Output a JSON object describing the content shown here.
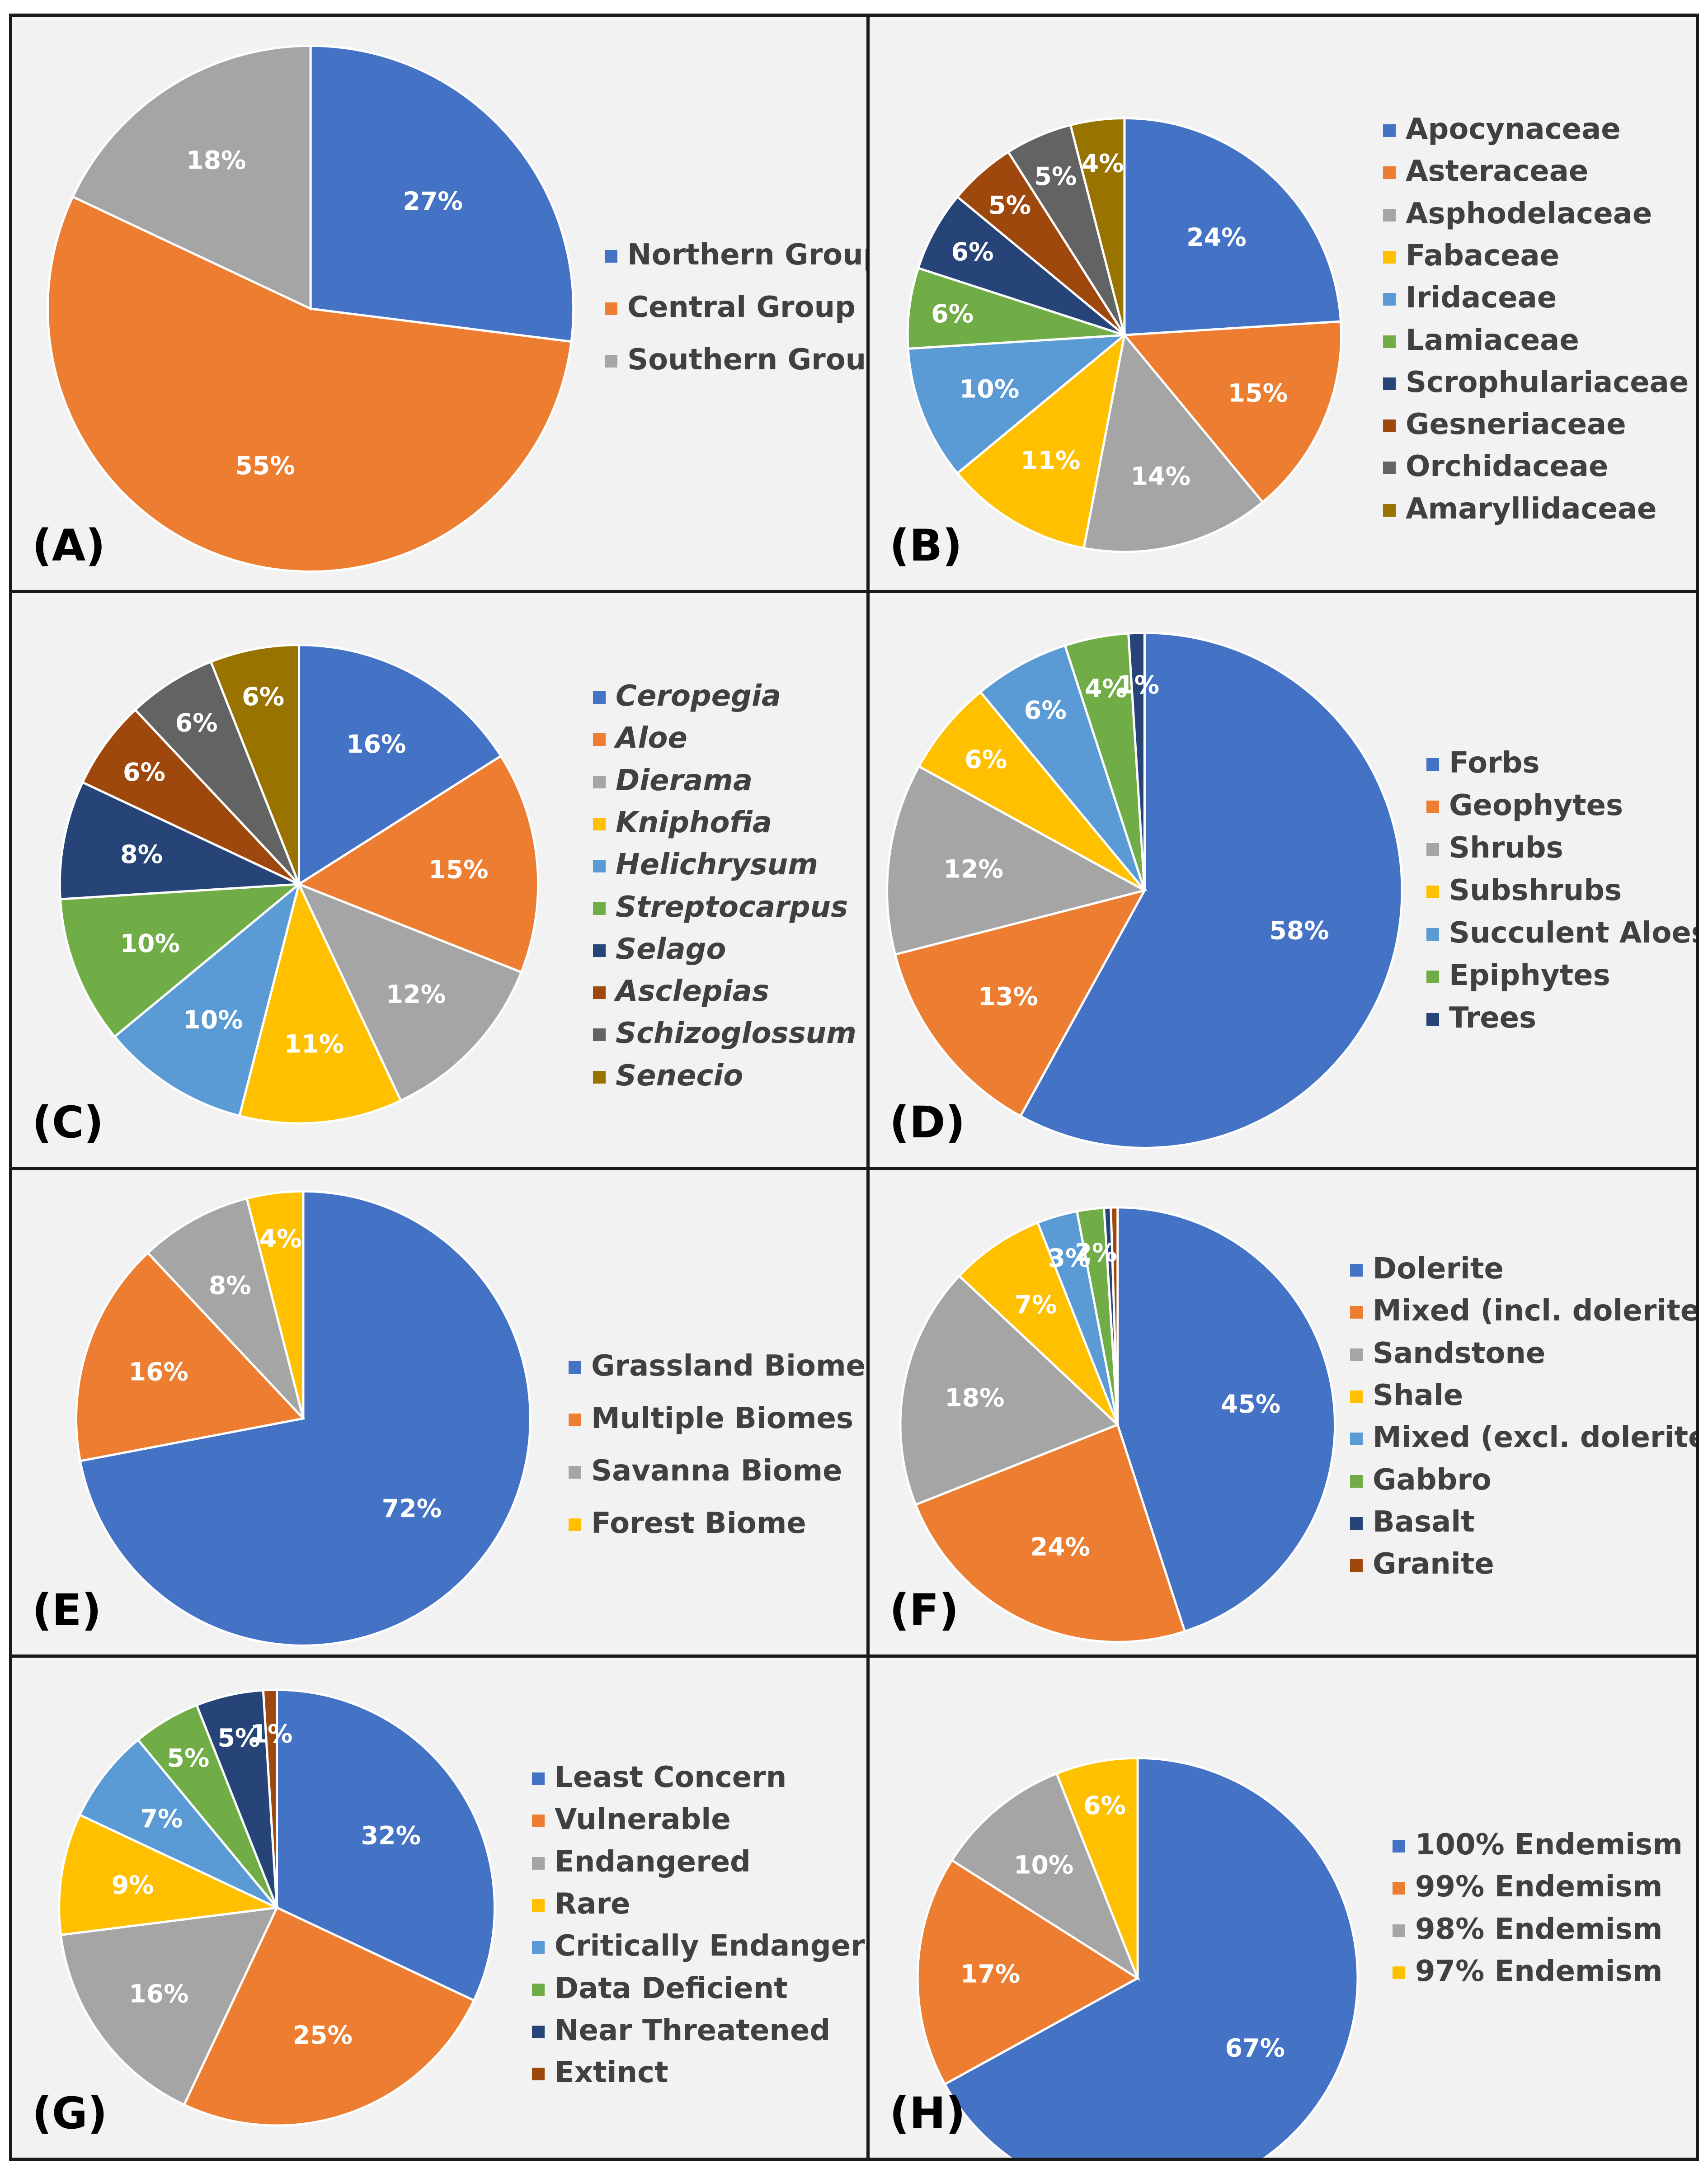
{
  "colors": {
    "blue": "#4472C4",
    "orange": "#ED7D31",
    "gray": "#A5A5A5",
    "gold": "#FFC000",
    "lightblue": "#5B9BD5",
    "green": "#70AD47",
    "navy": "#264478",
    "brown": "#9E480E",
    "darkgray": "#636363",
    "olive": "#997300"
  },
  "chart_data": [
    {
      "type": "pie",
      "panel": "(A)",
      "italic_legend": false,
      "categories": [
        "Northern Group",
        "Central Group",
        "Southern Group"
      ],
      "values": [
        27,
        55,
        18
      ],
      "labels": [
        "27%",
        "55%",
        "18%"
      ],
      "colors": [
        "#4472C4",
        "#ED7D31",
        "#A5A5A5"
      ]
    },
    {
      "type": "pie",
      "panel": "(B)",
      "italic_legend": false,
      "categories": [
        "Apocynaceae",
        "Asteraceae",
        "Asphodelaceae",
        "Fabaceae",
        "Iridaceae",
        "Lamiaceae",
        "Scrophulariaceae",
        "Gesneriaceae",
        "Orchidaceae",
        "Amaryllidaceae"
      ],
      "values": [
        24,
        15,
        14,
        11,
        10,
        6,
        6,
        5,
        5,
        4
      ],
      "labels": [
        "24%",
        "15%",
        "14%",
        "11%",
        "10%",
        "6%",
        "6%",
        "5%",
        "5%",
        "4%"
      ],
      "colors": [
        "#4472C4",
        "#ED7D31",
        "#A5A5A5",
        "#FFC000",
        "#5B9BD5",
        "#70AD47",
        "#264478",
        "#9E480E",
        "#636363",
        "#997300"
      ]
    },
    {
      "type": "pie",
      "panel": "(C)",
      "italic_legend": true,
      "categories": [
        "Ceropegia",
        "Aloe",
        "Dierama",
        "Kniphofia",
        "Helichrysum",
        "Streptocarpus",
        "Selago",
        "Asclepias",
        "Schizoglossum",
        "Senecio"
      ],
      "values": [
        16,
        15,
        12,
        11,
        10,
        10,
        8,
        6,
        6,
        6
      ],
      "labels": [
        "16%",
        "15%",
        "12%",
        "11%",
        "10%",
        "10%",
        "8%",
        "6%",
        "6%",
        "6%"
      ],
      "colors": [
        "#4472C4",
        "#ED7D31",
        "#A5A5A5",
        "#FFC000",
        "#5B9BD5",
        "#70AD47",
        "#264478",
        "#9E480E",
        "#636363",
        "#997300"
      ]
    },
    {
      "type": "pie",
      "panel": "(D)",
      "italic_legend": false,
      "categories": [
        "Forbs",
        "Geophytes",
        "Shrubs",
        "Subshrubs",
        "Succulent Aloes",
        "Epiphytes",
        "Trees"
      ],
      "values": [
        58,
        13,
        12,
        6,
        6,
        4,
        1
      ],
      "labels": [
        "58%",
        "13%",
        "12%",
        "6%",
        "6%",
        "4%",
        "1%"
      ],
      "colors": [
        "#4472C4",
        "#ED7D31",
        "#A5A5A5",
        "#FFC000",
        "#5B9BD5",
        "#70AD47",
        "#264478"
      ]
    },
    {
      "type": "pie",
      "panel": "(E)",
      "italic_legend": false,
      "categories": [
        "Grassland Biome",
        "Multiple Biomes",
        "Savanna Biome",
        "Forest Biome"
      ],
      "values": [
        72,
        16,
        8,
        4
      ],
      "labels": [
        "72%",
        "16%",
        "8%",
        "4%"
      ],
      "colors": [
        "#4472C4",
        "#ED7D31",
        "#A5A5A5",
        "#FFC000"
      ]
    },
    {
      "type": "pie",
      "panel": "(F)",
      "italic_legend": false,
      "categories": [
        "Dolerite",
        "Mixed (incl. dolerite)",
        "Sandstone",
        "Shale",
        "Mixed (excl. dolerite)",
        "Gabbro",
        "Basalt",
        "Granite"
      ],
      "values": [
        45,
        24,
        18,
        7,
        3,
        2,
        0.5,
        0.5
      ],
      "labels": [
        "45%",
        "24%",
        "18%",
        "7%",
        "3%",
        "2%",
        "",
        ""
      ],
      "colors": [
        "#4472C4",
        "#ED7D31",
        "#A5A5A5",
        "#FFC000",
        "#5B9BD5",
        "#70AD47",
        "#264478",
        "#9E480E"
      ]
    },
    {
      "type": "pie",
      "panel": "(G)",
      "italic_legend": false,
      "categories": [
        "Least Concern",
        "Vulnerable",
        "Endangered",
        "Rare",
        "Critically Endangered",
        "Data Deficient",
        "Near Threatened",
        "Extinct"
      ],
      "values": [
        32,
        25,
        16,
        9,
        7,
        5,
        5,
        1
      ],
      "labels": [
        "32%",
        "25%",
        "16%",
        "9%",
        "7%",
        "5%",
        "5%",
        "1%"
      ],
      "colors": [
        "#4472C4",
        "#ED7D31",
        "#A5A5A5",
        "#FFC000",
        "#5B9BD5",
        "#70AD47",
        "#264478",
        "#9E480E"
      ]
    },
    {
      "type": "pie",
      "panel": "(H)",
      "italic_legend": false,
      "categories": [
        "100% Endemism",
        "99% Endemism",
        "98% Endemism",
        "97% Endemism"
      ],
      "values": [
        67,
        17,
        10,
        6
      ],
      "labels": [
        "67%",
        "17%",
        "10%",
        "6%"
      ],
      "colors": [
        "#4472C4",
        "#ED7D31",
        "#A5A5A5",
        "#FFC000"
      ]
    }
  ]
}
